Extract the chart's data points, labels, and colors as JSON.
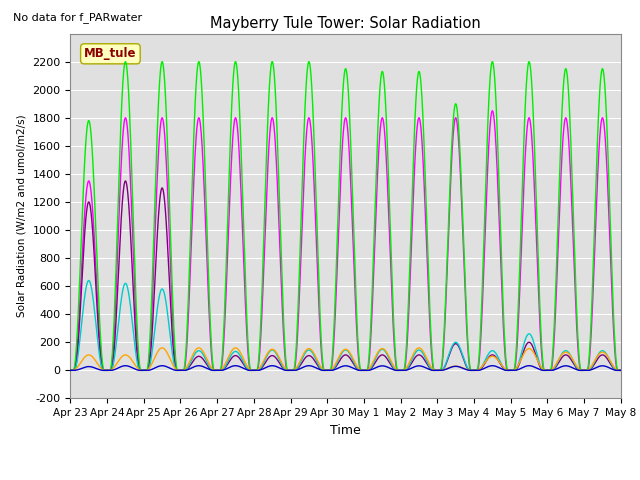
{
  "title": "Mayberry Tule Tower: Solar Radiation",
  "subtitle": "No data for f_PARwater",
  "xlabel": "Time",
  "ylabel": "Solar Radiation (W/m2 and umol/m2/s)",
  "ylim": [
    -200,
    2400
  ],
  "yticks": [
    -200,
    0,
    200,
    400,
    600,
    800,
    1000,
    1200,
    1400,
    1600,
    1800,
    2000,
    2200
  ],
  "xtick_labels": [
    "Apr 23",
    "Apr 24",
    "Apr 25",
    "Apr 26",
    "Apr 27",
    "Apr 28",
    "Apr 29",
    "Apr 30",
    "May 1",
    "May 2",
    "May 3",
    "May 4",
    "May 5",
    "May 6",
    "May 7",
    "May 8"
  ],
  "n_days": 15,
  "day_peak_green": [
    1780,
    2200,
    2200,
    2200,
    2200,
    2200,
    2200,
    2150,
    2130,
    2130,
    1900,
    2200,
    2200,
    2150,
    2150
  ],
  "day_peak_magenta": [
    1350,
    1800,
    1800,
    1800,
    1800,
    1800,
    1800,
    1800,
    1800,
    1800,
    1800,
    1850,
    1800,
    1800,
    1800
  ],
  "day_peak_orange": [
    110,
    110,
    160,
    160,
    160,
    150,
    155,
    150,
    155,
    160,
    30,
    100,
    155,
    130,
    130
  ],
  "day_peak_cyan": [
    640,
    620,
    580,
    140,
    135,
    145,
    145,
    145,
    150,
    145,
    200,
    140,
    260,
    140,
    140
  ],
  "day_peak_purple": [
    1200,
    1350,
    1300,
    100,
    105,
    105,
    105,
    110,
    110,
    110,
    190,
    110,
    200,
    110,
    110
  ],
  "plot_bg": "#E0E0E0",
  "fig_bg": "#FFFFFF",
  "mb_tule_box_color": "#FFFFC0",
  "mb_tule_text_color": "#8B0000"
}
